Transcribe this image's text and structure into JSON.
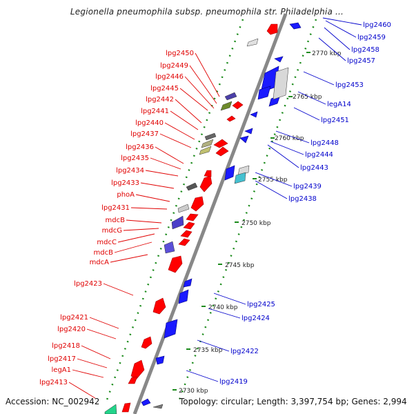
{
  "title": "Legionella pneumophila subsp. pneumophila str. Philadelphia ...",
  "footer": {
    "accession": "Accession: NC_002942",
    "summary": "Topology: circular; Length: 3,397,754 bp; Genes: 2,994"
  },
  "colors": {
    "forward_label": "#e00000",
    "reverse_label": "#0000cc",
    "ruler": "#888888",
    "ticks": "#1a8a1a",
    "forward_gene": "#ff0000",
    "reverse_gene": "#1a1aff"
  },
  "scale_labels": [
    "2770 kbp",
    "2765 kbp",
    "2760 kbp",
    "2755 kbp",
    "2750 kbp",
    "2745 kbp",
    "2740 kbp",
    "2735 kbp",
    "2730 kbp"
  ],
  "left_labels": [
    "lpg2450",
    "lpg2449",
    "lpg2446",
    "lpg2445",
    "lpg2442",
    "lpg2441",
    "lpg2440",
    "lpg2437",
    "lpg2436",
    "lpg2435",
    "lpg2434",
    "lpg2433",
    "phoA",
    "lpg2431",
    "mdcB",
    "mdcG",
    "mdcC",
    "mdcB",
    "mdcA",
    "lpg2423",
    "lpg2421",
    "lpg2420",
    "lpg2418",
    "lpg2417",
    "legA1",
    "lpg2413"
  ],
  "right_labels": [
    "lpg2460",
    "lpg2459",
    "lpg2458",
    "lpg2457",
    "lpg2453",
    "legA14",
    "lpg2451",
    "lpg2448",
    "lpg2444",
    "lpg2443",
    "lpg2439",
    "lpg2438",
    "lpg2425",
    "lpg2424",
    "lpg2422",
    "lpg2419"
  ]
}
